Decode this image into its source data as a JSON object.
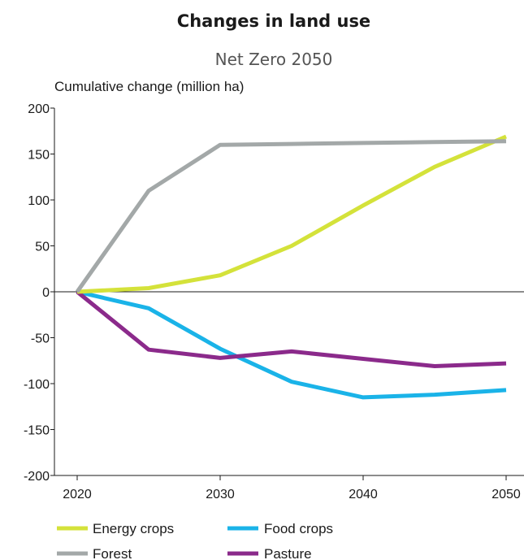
{
  "chart_data": {
    "type": "line",
    "title": "Changes in land use",
    "subtitle": "Net Zero 2050",
    "ylabel": "Cumulative change (million ha)",
    "xlabel": "",
    "x": [
      2020,
      2025,
      2030,
      2035,
      2040,
      2045,
      2050
    ],
    "xticks": [
      2020,
      2030,
      2040,
      2050
    ],
    "xtick_labels": [
      "2020",
      "2030",
      "2040",
      "2050"
    ],
    "xlim": [
      2020,
      2050
    ],
    "ylim": [
      -200,
      200
    ],
    "yticks": [
      200,
      150,
      100,
      50,
      0,
      -50,
      -100,
      -150,
      -200
    ],
    "ytick_labels": [
      "200",
      "150",
      "100",
      "50",
      "0",
      "-50",
      "-100",
      "-150",
      "-200"
    ],
    "grid": false,
    "zero_line": true,
    "legend_position": "bottom",
    "series": [
      {
        "name": "Energy crops",
        "color": "#d4e23a",
        "values": [
          0,
          4,
          18,
          50,
          94,
          136,
          169
        ]
      },
      {
        "name": "Food crops",
        "color": "#1ab3e8",
        "values": [
          0,
          -18,
          -62,
          -98,
          -115,
          -112,
          -107
        ]
      },
      {
        "name": "Forest",
        "color": "#a3a8a8",
        "values": [
          0,
          110,
          160,
          161,
          162,
          163,
          164
        ]
      },
      {
        "name": "Pasture",
        "color": "#8b2a8b",
        "values": [
          0,
          -63,
          -72,
          -65,
          -73,
          -81,
          -78
        ]
      }
    ]
  }
}
